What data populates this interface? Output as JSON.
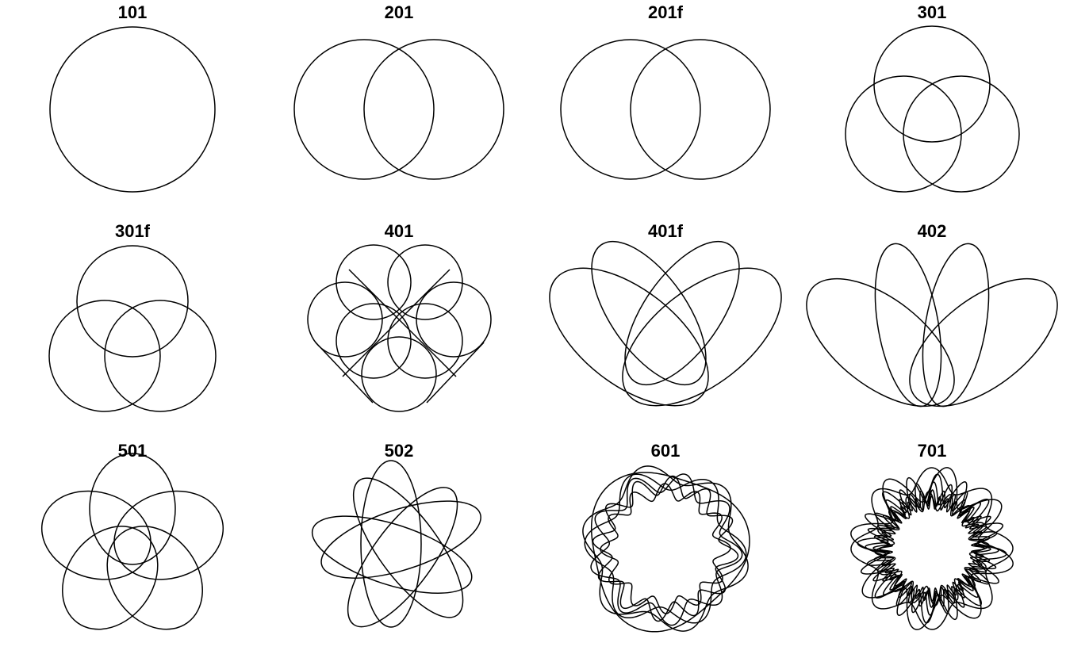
{
  "colors": {
    "background": "#ffffff",
    "stroke": "#000000"
  },
  "panels": [
    {
      "title": "101"
    },
    {
      "title": "201"
    },
    {
      "title": "201f"
    },
    {
      "title": "301"
    },
    {
      "title": "301f"
    },
    {
      "title": "401"
    },
    {
      "title": "401f"
    },
    {
      "title": "402"
    },
    {
      "title": "501"
    },
    {
      "title": "502"
    },
    {
      "title": "601"
    },
    {
      "title": "701"
    }
  ]
}
